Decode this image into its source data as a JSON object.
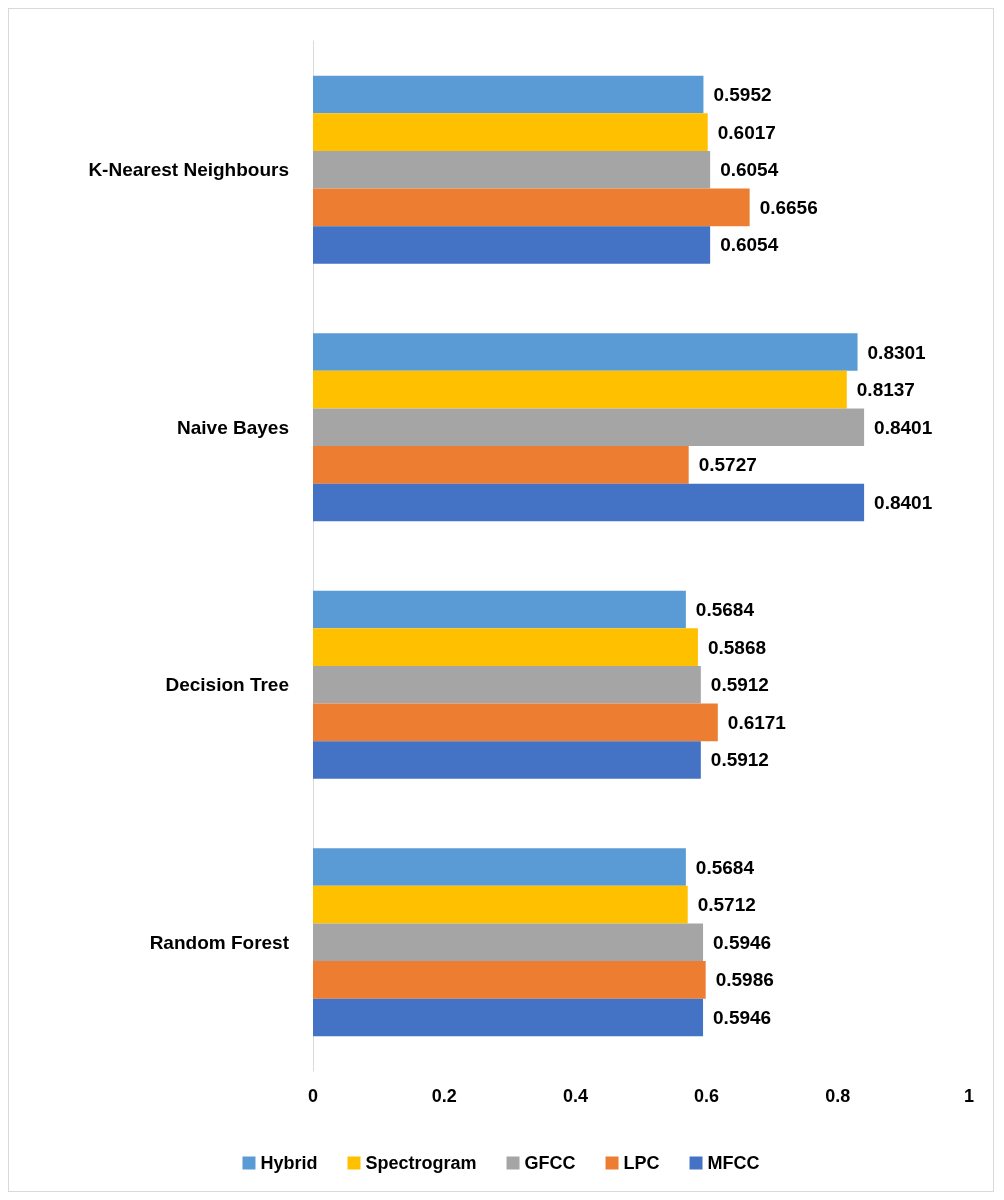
{
  "chart_data": {
    "type": "bar",
    "orientation": "horizontal",
    "categories": [
      "K-Nearest Neighbours",
      "Naive Bayes",
      "Decision Tree",
      "Random Forest"
    ],
    "series": [
      {
        "name": "Hybrid",
        "color": "#5b9bd5",
        "values": [
          0.5952,
          0.8301,
          0.5684,
          0.5684
        ]
      },
      {
        "name": "Spectrogram",
        "color": "#ffc000",
        "values": [
          0.6017,
          0.8137,
          0.5868,
          0.5712
        ]
      },
      {
        "name": "GFCC",
        "color": "#a5a5a5",
        "values": [
          0.6054,
          0.8401,
          0.5912,
          0.5946
        ]
      },
      {
        "name": "LPC",
        "color": "#ed7d31",
        "values": [
          0.6656,
          0.5727,
          0.6171,
          0.5986
        ]
      },
      {
        "name": "MFCC",
        "color": "#4472c4",
        "values": [
          0.6054,
          0.8401,
          0.5912,
          0.5946
        ]
      }
    ],
    "xlim": [
      0,
      1
    ],
    "xticks": [
      0,
      0.2,
      0.4,
      0.6,
      0.8,
      1
    ],
    "data_labels": true,
    "grid": false,
    "legend": "bottom"
  }
}
